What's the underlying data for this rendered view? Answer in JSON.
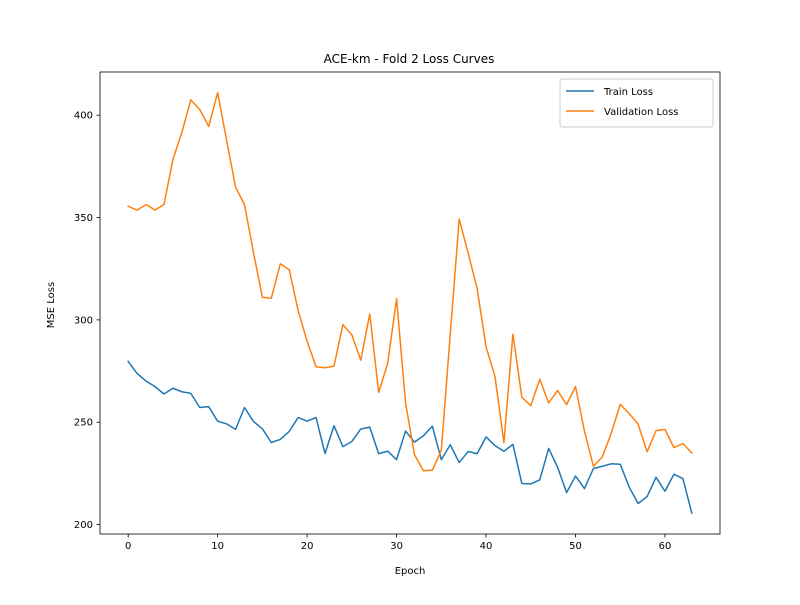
{
  "chart_data": {
    "type": "line",
    "title": "ACE-km - Fold 2 Loss Curves",
    "xlabel": "Epoch",
    "ylabel": "MSE Loss",
    "xlim": [
      -3.15,
      66.15
    ],
    "ylim": [
      195.4,
      421.1
    ],
    "xticks": [
      0,
      10,
      20,
      30,
      40,
      50,
      60
    ],
    "yticks": [
      200,
      250,
      300,
      350,
      400
    ],
    "grid": false,
    "legend_position": "upper right",
    "x": [
      0,
      1,
      2,
      3,
      4,
      5,
      6,
      7,
      8,
      9,
      10,
      11,
      12,
      13,
      14,
      15,
      16,
      17,
      18,
      19,
      20,
      21,
      22,
      23,
      24,
      25,
      26,
      27,
      28,
      29,
      30,
      31,
      32,
      33,
      34,
      35,
      36,
      37,
      38,
      39,
      40,
      41,
      42,
      43,
      44,
      45,
      46,
      47,
      48,
      49,
      50,
      51,
      52,
      53,
      54,
      55,
      56,
      57,
      58,
      59,
      60,
      61,
      62,
      63
    ],
    "series": [
      {
        "name": "Train Loss",
        "color": "#1f77b4",
        "values": [
          279.7,
          273.8,
          270.1,
          267.4,
          263.8,
          266.6,
          264.9,
          264.1,
          257.2,
          257.6,
          250.5,
          249.2,
          246.5,
          257.2,
          250.4,
          246.8,
          240.1,
          241.6,
          245.5,
          252.3,
          250.5,
          252.3,
          234.7,
          248.3,
          238.1,
          240.6,
          246.7,
          247.6,
          234.6,
          235.9,
          231.7,
          245.7,
          240.3,
          243.4,
          248.1,
          231.7,
          239.0,
          230.3,
          235.7,
          234.6,
          242.8,
          238.6,
          235.8,
          239.2,
          220.1,
          219.9,
          221.8,
          237.2,
          228.0,
          215.6,
          223.7,
          217.6,
          227.4,
          228.5,
          229.7,
          229.5,
          218.3,
          210.3,
          213.7,
          223.1,
          216.3,
          224.6,
          222.5,
          205.6
        ]
      },
      {
        "name": "Validation Loss",
        "color": "#ff7f0e",
        "values": [
          355.5,
          353.6,
          356.3,
          353.7,
          356.3,
          378.3,
          391.6,
          407.5,
          402.8,
          394.5,
          411.0,
          387.8,
          364.9,
          356.3,
          333.0,
          311.0,
          310.6,
          327.4,
          324.5,
          304.5,
          289.5,
          277.1,
          276.6,
          277.4,
          297.7,
          292.7,
          280.3,
          302.9,
          264.6,
          278.6,
          310.3,
          259.5,
          234.2,
          226.3,
          226.6,
          236.3,
          293.0,
          349.3,
          332.6,
          315.4,
          286.9,
          272.3,
          240.0,
          293.0,
          262.2,
          258.1,
          271.0,
          259.4,
          265.5,
          258.6,
          267.4,
          245.6,
          228.5,
          233.1,
          244.7,
          258.8,
          254.2,
          249.1,
          235.6,
          245.9,
          246.5,
          237.6,
          239.6,
          235.0
        ]
      }
    ]
  }
}
